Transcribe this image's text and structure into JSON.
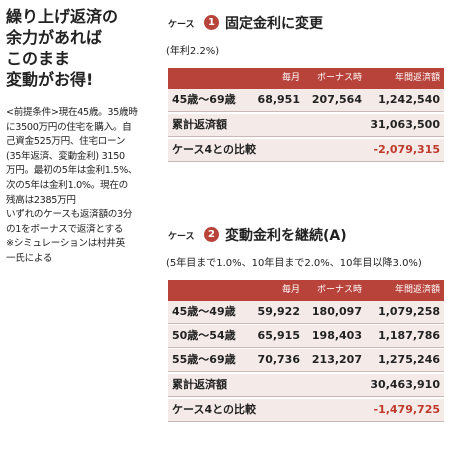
{
  "headline": [
    "繰り上げ返済の",
    "余力があれば",
    "このまま",
    "変動がお得!"
  ],
  "premise": [
    "<前提条件>現在45歳。35歳時",
    "に3500万円の住宅を購入。自",
    "己資金525万円、住宅ローン",
    "(35年返済、変動金利) 3150",
    "万円。最初の5年は金利1.5%、",
    "次の5年は金利1.0%。現在の",
    "残高は2385万円",
    "いずれのケースも返済額の3分",
    "の1をボーナスで返済とする",
    "※シミュレーションは村井英",
    "一氏による"
  ],
  "cases": [
    {
      "label": "ケース",
      "number": "1",
      "title": "固定金利に変更",
      "rate": "(年利2.2%)",
      "columns": [
        "毎月",
        "ボーナス時",
        "年間返済額"
      ],
      "rows": [
        [
          "45歳〜69歳",
          "68,951",
          "207,564",
          "1,242,540"
        ]
      ],
      "total": {
        "label": "累計返済額",
        "value": "31,063,500"
      },
      "comparison": {
        "label": "ケース4との比較",
        "value": "-2,079,315"
      }
    },
    {
      "label": "ケース",
      "number": "2",
      "title": "変動金利を継続(A)",
      "rate": "(5年目まで1.0%、10年目まで2.0%、10年目以降3.0%)",
      "columns": [
        "毎月",
        "ボーナス時",
        "年間返済額"
      ],
      "rows": [
        [
          "45歳〜49歳",
          "59,922",
          "180,097",
          "1,079,258"
        ],
        [
          "50歳〜54歳",
          "65,915",
          "198,403",
          "1,187,786"
        ],
        [
          "55歳〜69歳",
          "70,736",
          "213,207",
          "1,275,246"
        ]
      ],
      "total": {
        "label": "累計返済額",
        "value": "30,463,910"
      },
      "comparison": {
        "label": "ケース4との比較",
        "value": "-1,479,725"
      }
    }
  ]
}
